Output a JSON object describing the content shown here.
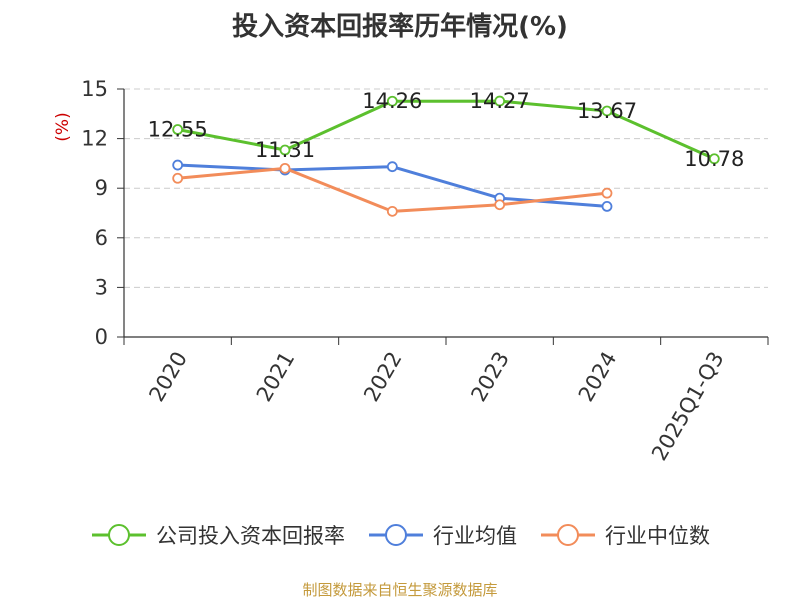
{
  "chart_data": {
    "type": "line",
    "title": "投入资本回报率历年情况(%)",
    "ylabel": "(%)",
    "xlabel": "",
    "categories": [
      "2020",
      "2021",
      "2022",
      "2023",
      "2024",
      "2025Q1-Q3"
    ],
    "ylim": [
      0,
      15
    ],
    "yticks": [
      0,
      3,
      6,
      9,
      12,
      15
    ],
    "grid": true,
    "legend_position": "bottom",
    "series": [
      {
        "name": "公司投入资本回报率",
        "color": "#5cc02e",
        "values": [
          12.55,
          11.31,
          14.26,
          14.27,
          13.67,
          10.78
        ],
        "labels": [
          "12.55",
          "11.31",
          "14.26",
          "14.27",
          "13.67",
          "10.78"
        ]
      },
      {
        "name": "行业均值",
        "color": "#4f7fdb",
        "values": [
          10.4,
          10.1,
          10.3,
          8.4,
          7.9,
          null
        ]
      },
      {
        "name": "行业中位数",
        "color": "#f28c5a",
        "values": [
          9.6,
          10.2,
          7.6,
          8.0,
          8.7,
          null
        ]
      }
    ]
  },
  "colors": {
    "ylabel": "#cc0000",
    "source": "#c49a3c",
    "grid": "#cccccc",
    "axis": "#333333"
  },
  "footer": {
    "source": "制图数据来自恒生聚源数据库"
  }
}
